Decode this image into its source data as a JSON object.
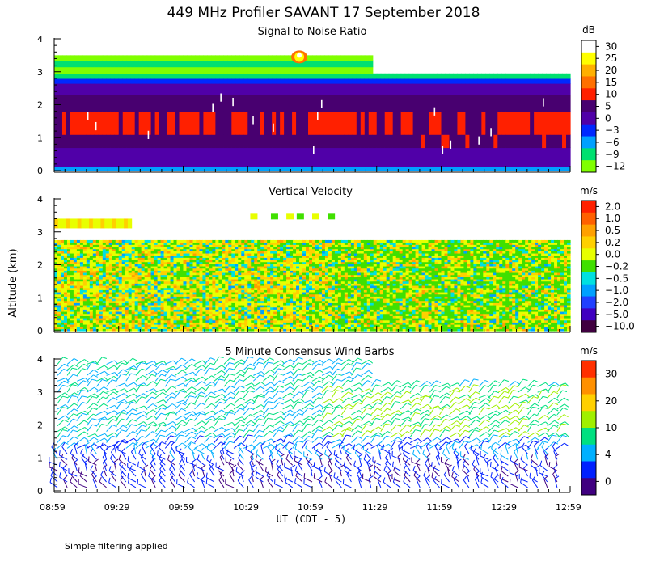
{
  "title": "449 MHz Profiler SAVANT 17 September 2018",
  "ylabel": "Altitude (km)",
  "xlabel": "UT (CDT - 5)",
  "footnote": "Simple filtering applied",
  "x_ticks": [
    "08:59",
    "09:29",
    "09:59",
    "10:29",
    "10:59",
    "11:29",
    "11:59",
    "12:29",
    "12:59"
  ],
  "chart_data": [
    {
      "type": "heatmap",
      "title": "Signal to Noise Ratio",
      "ylim": [
        0,
        4
      ],
      "y_ticks": [
        "0",
        "1",
        "2",
        "3",
        "4"
      ],
      "unit": "dB",
      "colorbar": {
        "labels": [
          "30",
          "25",
          "20",
          "15",
          "10",
          "5",
          "0",
          "−3",
          "−6",
          "−9",
          "−12"
        ],
        "colors": [
          "#ffffff",
          "#ffff00",
          "#ffb000",
          "#ff7000",
          "#ff2000",
          "#480070",
          "#5000a8",
          "#0028ff",
          "#00a0ff",
          "#00e070",
          "#80ff00"
        ]
      },
      "bands": [
        {
          "y0": 0.0,
          "y1": 0.12,
          "label": "-6"
        },
        {
          "y0": 0.12,
          "y1": 0.7,
          "label": "0"
        },
        {
          "y0": 0.7,
          "y1": 1.1,
          "label": "5"
        },
        {
          "y0": 1.1,
          "y1": 1.8,
          "label": "10"
        },
        {
          "y0": 1.8,
          "y1": 2.3,
          "label": "5"
        },
        {
          "y0": 2.3,
          "y1": 2.65,
          "label": "0"
        },
        {
          "y0": 2.65,
          "y1": 2.8,
          "label": "-3"
        },
        {
          "y0": 2.8,
          "y1": 2.95,
          "label": "-9"
        },
        {
          "y0": 2.95,
          "y1": 3.15,
          "label": "-12"
        },
        {
          "y0": 3.15,
          "y1": 3.35,
          "label": "-9"
        },
        {
          "y0": 3.35,
          "y1": 3.5,
          "label": "-12"
        }
      ]
    },
    {
      "type": "heatmap",
      "title": "Vertical Velocity",
      "ylim": [
        0,
        4
      ],
      "y_ticks": [
        "0",
        "1",
        "2",
        "3",
        "4"
      ],
      "unit": "m/s",
      "colorbar": {
        "labels": [
          "2.0",
          "1.0",
          "0.5",
          "0.2",
          "0.0",
          "−0.2",
          "−0.5",
          "−1.0",
          "−2.0",
          "−5.0",
          "−10.0"
        ],
        "colors": [
          "#ff2000",
          "#ff6000",
          "#ffa000",
          "#ffd000",
          "#e8ff00",
          "#40e000",
          "#00e0e0",
          "#00a0ff",
          "#2040ff",
          "#4000c0",
          "#400040"
        ]
      },
      "data_top_km": 2.75
    },
    {
      "type": "scatter",
      "title": "5 Minute Consensus Wind Barbs",
      "ylim": [
        0,
        4
      ],
      "y_ticks": [
        "0",
        "1",
        "2",
        "3",
        "4"
      ],
      "unit": "m/s",
      "colorbar": {
        "labels": [
          "30",
          "20",
          "10",
          "4",
          "0"
        ],
        "colors": [
          "#ff3000",
          "#ff9000",
          "#ffd000",
          "#a0f000",
          "#00e080",
          "#00b0ff",
          "#0020ff",
          "#400080"
        ]
      }
    }
  ]
}
